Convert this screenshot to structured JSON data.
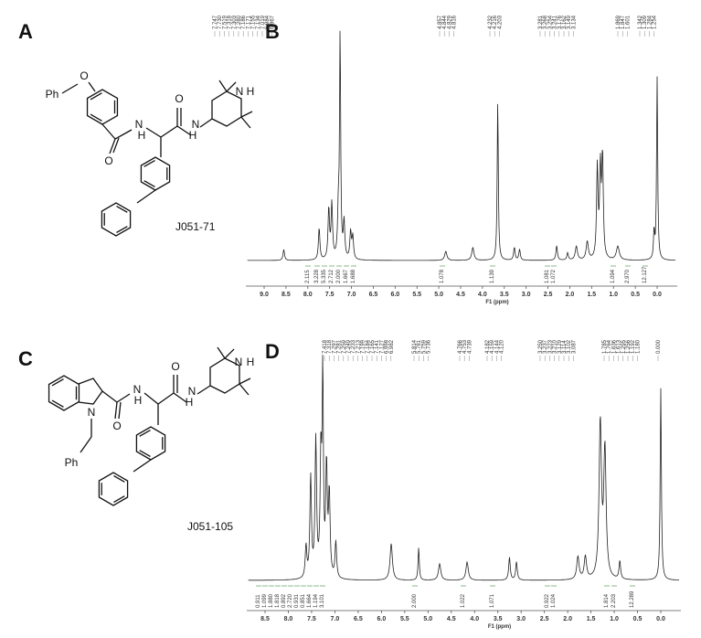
{
  "panels": [
    {
      "label": "A",
      "compound": "J051-71",
      "atoms": [
        "Ph",
        "O",
        "O",
        "N",
        "H",
        "O",
        "N",
        "H",
        "N",
        "H"
      ]
    },
    {
      "label": "B",
      "peak_groups": [
        [
          "7.747",
          "7.730",
          "7.519",
          "7.318",
          "7.303",
          "7.280",
          "7.186",
          "7.171",
          "7.155",
          "7.134",
          "7.019",
          "6.984",
          "6.967"
        ],
        [
          "4.857",
          "4.844",
          "4.829",
          "4.816"
        ],
        [
          "4.232",
          "4.216",
          "4.203"
        ],
        [
          "3.281",
          "3.268",
          "3.254",
          "3.241",
          "3.176",
          "3.162",
          "3.149",
          "3.134"
        ],
        [
          "1.869",
          "1.847",
          "1.601"
        ],
        [
          "1.342",
          "1.309",
          "1.284",
          "1.254"
        ]
      ],
      "integrals": [
        "2.115",
        "3.228",
        "5.335",
        "2.712",
        "2.000",
        "1.667",
        "1.688",
        "1.078",
        "1.139",
        "1.081",
        "1.072",
        "1.094",
        "2.970",
        "12.127"
      ],
      "ticks": [
        "9.0",
        "8.5",
        "8.0",
        "7.5",
        "7.0",
        "6.5",
        "6.0",
        "5.5",
        "5.0",
        "4.5",
        "4.0",
        "3.5",
        "3.0",
        "2.5",
        "2.0",
        "1.5",
        "1.0",
        "0.5",
        "0.0"
      ],
      "axis_label": "F1 (ppm)"
    },
    {
      "label": "C",
      "compound": "J051-105",
      "atoms": [
        "N",
        "Ph",
        "O",
        "N",
        "H",
        "O",
        "N",
        "H",
        "N",
        "H"
      ]
    },
    {
      "label": "D",
      "peak_groups": [
        [
          "7.418",
          "7.318",
          "7.297",
          "7.281",
          "7.259",
          "7.249",
          "7.233",
          "7.213",
          "7.199",
          "7.184",
          "7.165",
          "7.141",
          "7.127",
          "6.998",
          "6.982"
        ],
        [
          "5.814",
          "5.781",
          "5.759",
          "5.736"
        ],
        [
          "4.766",
          "4.753",
          "4.739"
        ],
        [
          "4.182",
          "4.159",
          "4.144",
          "4.120"
        ],
        [
          "3.250",
          "3.237",
          "3.223",
          "3.210",
          "3.129",
          "3.114",
          "3.102",
          "3.087"
        ],
        [
          "1.785",
          "1.764",
          "1.636",
          "1.613",
          "1.295",
          "1.256",
          "1.192",
          "1.180"
        ],
        [
          "0.000"
        ]
      ],
      "integrals": [
        "0.911",
        "1.099",
        "1.880",
        "1.818",
        "0.892",
        "2.720",
        "0.931",
        "0.851",
        "1.664",
        "1.194",
        "3.101",
        "2.000",
        "1.022",
        "1.071",
        "0.922",
        "1.024",
        "1.814",
        "2.203",
        "12.289"
      ],
      "ticks": [
        "8.5",
        "8.0",
        "7.5",
        "7.0",
        "6.5",
        "6.0",
        "5.5",
        "5.0",
        "4.5",
        "4.0",
        "3.5",
        "3.0",
        "2.5",
        "2.0",
        "1.5",
        "1.0",
        "0.5",
        "0.0"
      ],
      "axis_label": "F1 (ppm)"
    }
  ]
}
